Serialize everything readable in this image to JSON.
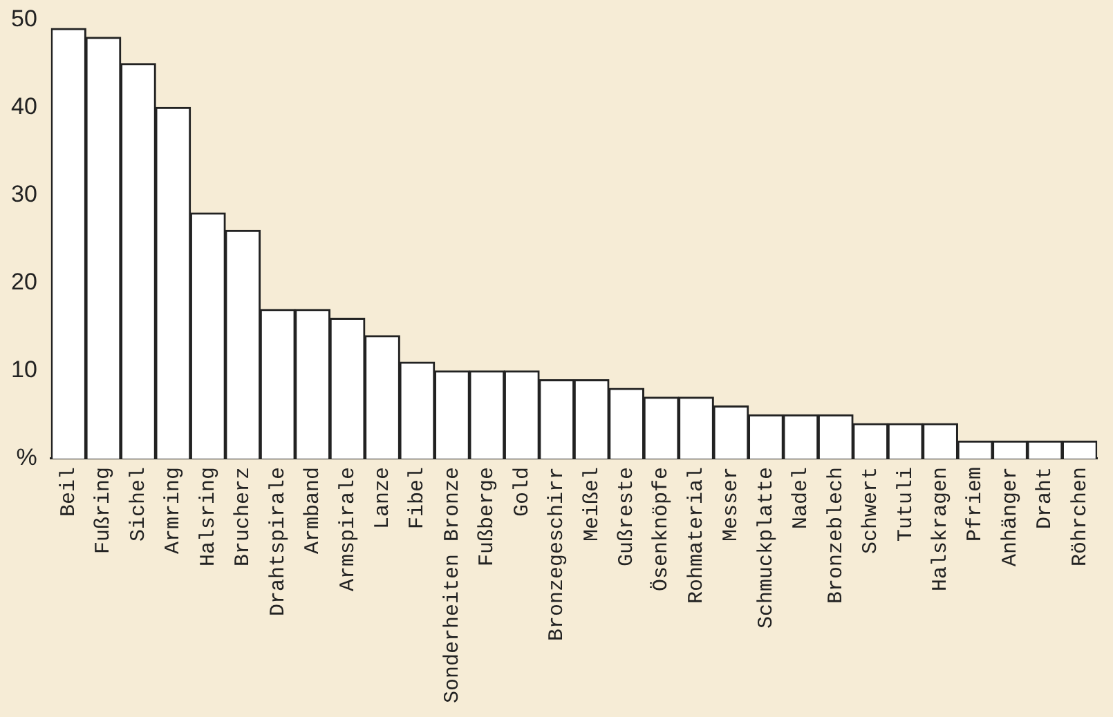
{
  "chart_data": {
    "type": "bar",
    "categories": [
      "Beil",
      "Fußring",
      "Sichel",
      "Armring",
      "Halsring",
      "Brucherz",
      "Drahtspirale",
      "Armband",
      "Armspirale",
      "Lanze",
      "Fibel",
      "Sonderheiten Bronze",
      "Fußberge",
      "Gold",
      "Bronzegeschirr",
      "Meißel",
      "Gußreste",
      "Ösenknöpfe",
      "Rohmaterial",
      "Messer",
      "Schmuckplatte",
      "Nadel",
      "Bronzeblech",
      "Schwert",
      "Tutuli",
      "Halskragen",
      "Pfriem",
      "Anhänger",
      "Draht",
      "Röhrchen"
    ],
    "values": [
      49,
      48,
      45,
      40,
      28,
      26,
      17,
      17,
      16,
      14,
      11,
      10,
      10,
      10,
      9,
      9,
      8,
      7,
      7,
      6,
      5,
      5,
      5,
      4,
      4,
      4,
      2,
      2,
      2,
      2
    ],
    "color": "#ffffff",
    "ylim": [
      0,
      50
    ],
    "yticks": [
      {
        "value": 0,
        "label": "%"
      },
      10,
      20,
      30,
      40,
      50
    ],
    "grid": false,
    "legend": false
  }
}
